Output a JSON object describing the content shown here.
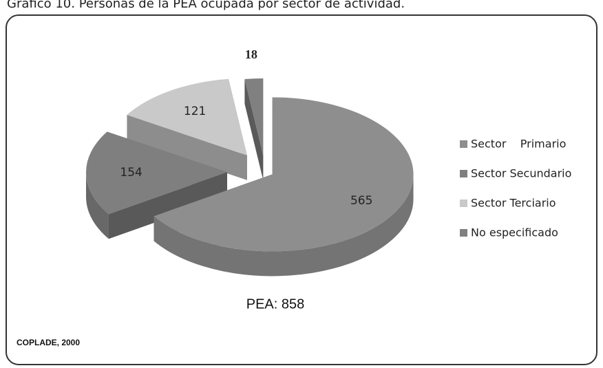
{
  "chart_data": {
    "type": "pie",
    "title": "Gráfico 10. Personas de la PEA ocupada por sector de actividad.",
    "categories": [
      "Sector    Primario",
      "Sector Secundario",
      "Sector Terciario",
      "No especificado"
    ],
    "values": [
      565,
      154,
      121,
      18
    ],
    "colors": [
      "#8e8e8e",
      "#7f7f7f",
      "#c9c9c9",
      "#808080"
    ],
    "annotation": "PEA: 858",
    "source": "COPLADE, 2000",
    "legend": "right"
  }
}
